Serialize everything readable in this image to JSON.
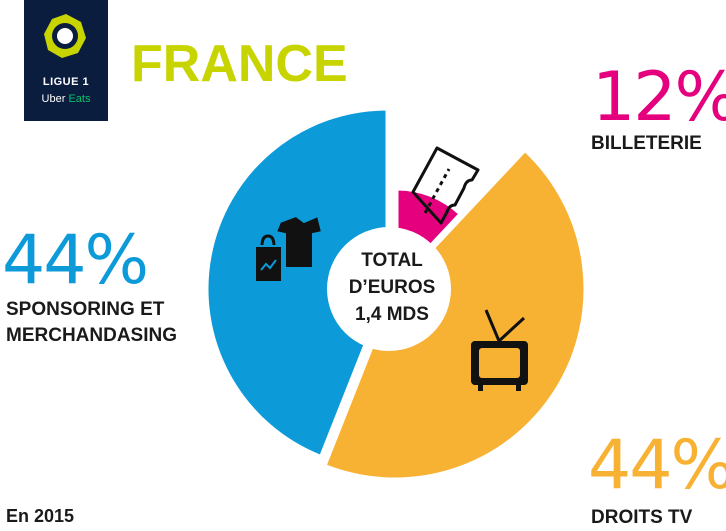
{
  "logo": {
    "line1": "LIGUE 1",
    "line2_a": "Uber",
    "line2_b": "Eats",
    "brand_color": "#c8d400"
  },
  "country": "FRANCE",
  "chart_data": {
    "type": "pie",
    "center_label_lines": [
      "TOTAL",
      "D’EUROS",
      "1,4 MDS"
    ],
    "slices": [
      {
        "name": "BILLETERIE",
        "value": 12,
        "display": "12%",
        "color": "#e5007e",
        "icon": "ticket-icon"
      },
      {
        "name": "DROITS TV",
        "value": 44,
        "display": "44%",
        "color": "#f7b234",
        "icon": "tv-icon"
      },
      {
        "name": "SPONSORING ET MERCHANDASING",
        "value": 44,
        "display": "44%",
        "color": "#0d9ad9",
        "icon": "merchandise-icon",
        "label_lines": [
          "SPONSORING ET",
          "MERCHANDASING"
        ]
      }
    ]
  },
  "footnote": "En 2015"
}
